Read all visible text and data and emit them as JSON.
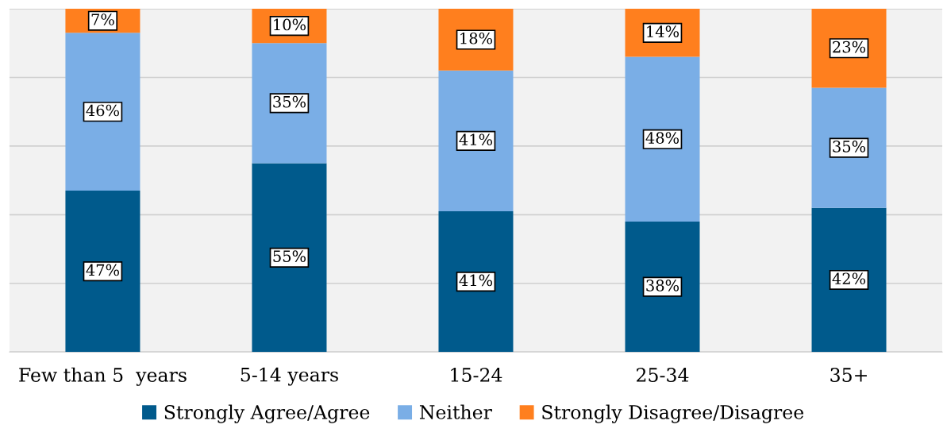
{
  "chart_data": {
    "type": "bar",
    "stacked": true,
    "categories": [
      "Few than 5  years",
      "5-14 years",
      "15-24",
      "25-34",
      "35+"
    ],
    "series": [
      {
        "name": "Strongly Agree/Agree",
        "color": "#005a8c",
        "values": [
          47,
          55,
          41,
          38,
          42
        ],
        "value_labels": [
          "47%",
          "55%",
          "41%",
          "38%",
          "42%"
        ]
      },
      {
        "name": "Neither",
        "color": "#7aaee6",
        "values": [
          46,
          35,
          41,
          48,
          35
        ],
        "value_labels": [
          "46%",
          "35%",
          "41%",
          "48%",
          "35%"
        ]
      },
      {
        "name": "Strongly Disagree/Disagree",
        "color": "#ff7f1e",
        "values": [
          7,
          10,
          18,
          14,
          23
        ],
        "value_labels": [
          "7%",
          "10%",
          "18%",
          "14%",
          "23%"
        ]
      }
    ],
    "tick_labels": "x",
    "grid": "y",
    "legend": "bottom"
  }
}
